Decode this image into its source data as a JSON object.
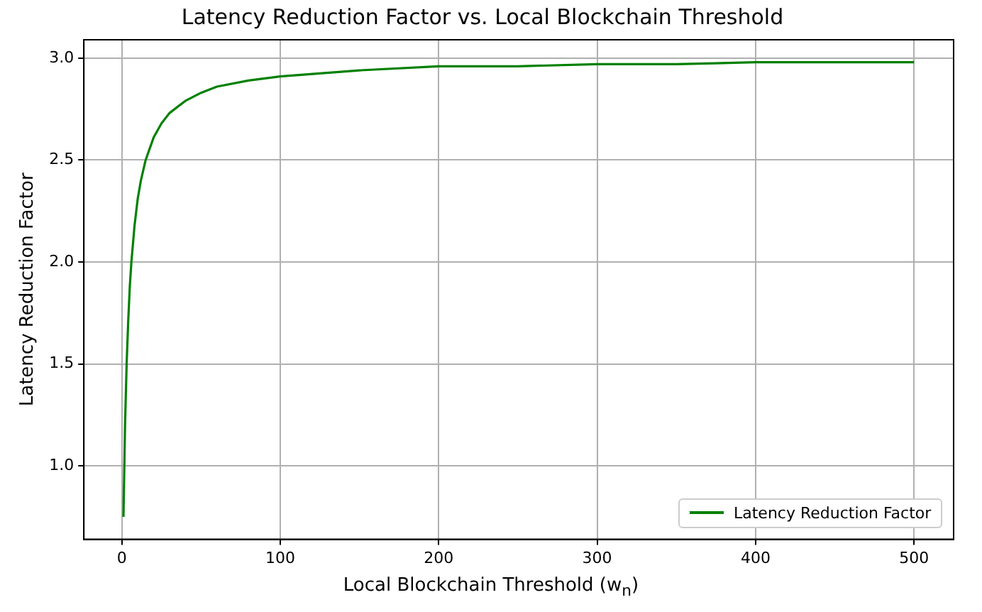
{
  "chart_data": {
    "type": "line",
    "title": "Latency Reduction Factor vs. Local Blockchain Threshold",
    "xlabel": "Local Blockchain Threshold (w$_{n}$)",
    "ylabel": "Latency Reduction Factor",
    "x": [
      1,
      2,
      3,
      4,
      5,
      6,
      8,
      10,
      12,
      15,
      20,
      25,
      30,
      40,
      50,
      60,
      80,
      100,
      150,
      200,
      250,
      300,
      350,
      400,
      450,
      500
    ],
    "series": [
      {
        "name": "Latency Reduction Factor",
        "color": "#008000",
        "values": [
          0.75,
          1.2,
          1.5,
          1.71,
          1.88,
          2.0,
          2.18,
          2.31,
          2.4,
          2.5,
          2.61,
          2.68,
          2.73,
          2.79,
          2.83,
          2.86,
          2.89,
          2.91,
          2.94,
          2.96,
          2.96,
          2.97,
          2.97,
          2.98,
          2.98,
          2.98
        ]
      }
    ],
    "xlim": [
      -24,
      525
    ],
    "ylim": [
      0.64,
      3.09
    ],
    "xticks": [
      0,
      100,
      200,
      300,
      400,
      500
    ],
    "yticks": [
      {
        "value": 1,
        "label": "1.0"
      },
      {
        "value": 1.5,
        "label": "1.5"
      },
      {
        "value": 2,
        "label": "2.0"
      },
      {
        "value": 2.5,
        "label": "2.5"
      },
      {
        "value": 3,
        "label": "3.0"
      }
    ],
    "grid": true,
    "legend": "bottom right",
    "marker": "none",
    "line_style": "solid"
  }
}
